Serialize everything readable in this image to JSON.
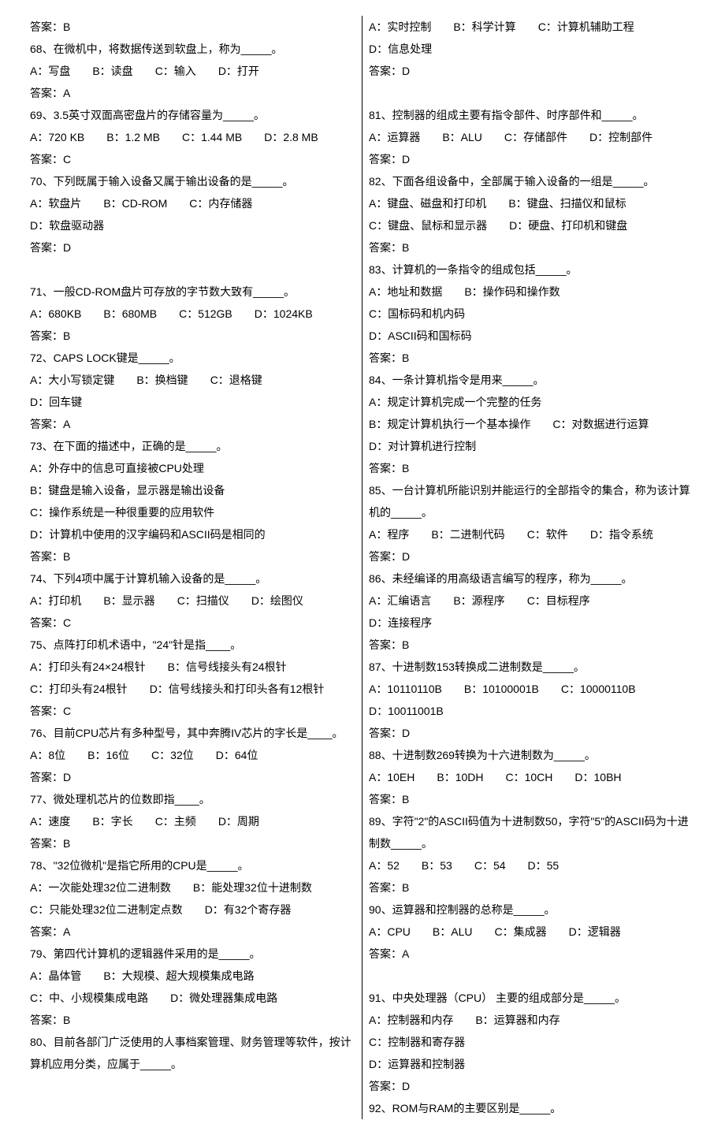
{
  "left": [
    {
      "text": "答案：B"
    },
    {
      "text": "68、在微机中，将数据传送到软盘上，称为_____。"
    },
    {
      "opts": [
        "A：写盘",
        "B：读盘",
        "C：输入",
        "D：打开"
      ]
    },
    {
      "text": "答案：A"
    },
    {
      "text": "69、3.5英寸双面高密盘片的存储容量为_____。"
    },
    {
      "opts": [
        "A：720 KB",
        "B：1.2 MB",
        "C：1.44 MB",
        "D：2.8 MB"
      ]
    },
    {
      "text": "答案：C"
    },
    {
      "text": "70、下列既属于输入设备又属于输出设备的是_____。"
    },
    {
      "opts": [
        "A：软盘片",
        "B：CD-ROM",
        "C：内存储器",
        "D：软盘驱动器"
      ]
    },
    {
      "text": "答案：D"
    },
    {
      "text": " "
    },
    {
      "text": "71、一般CD-ROM盘片可存放的字节数大致有_____。"
    },
    {
      "opts": [
        "A：680KB",
        "B：680MB",
        "C：512GB",
        "D：1024KB"
      ]
    },
    {
      "text": "答案：B"
    },
    {
      "text": "72、CAPS LOCK键是_____。"
    },
    {
      "opts": [
        "A：大小写锁定键",
        "B：换档键",
        "C：退格键",
        "D：回车键"
      ]
    },
    {
      "text": "答案：A"
    },
    {
      "text": "73、在下面的描述中，正确的是_____。"
    },
    {
      "opts": [
        "A：外存中的信息可直接被CPU处理",
        "B：键盘是输入设备，显示器是输出设备",
        "C：操作系统是一种很重要的应用软件",
        "D：计算机中使用的汉字编码和ASCII码是相同的"
      ]
    },
    {
      "text": "答案：B"
    },
    {
      "text": "74、下列4项中属于计算机输入设备的是_____。"
    },
    {
      "opts": [
        "A：打印机",
        "B：显示器",
        "C：扫描仪",
        "D：绘图仪"
      ]
    },
    {
      "text": "答案：C"
    },
    {
      "text": "75、点阵打印机术语中，\"24\"针是指____。"
    },
    {
      "opts": [
        "A：打印头有24×24根针",
        "B：信号线接头有24根针",
        "C：打印头有24根针",
        "D：信号线接头和打印头各有12根针"
      ]
    },
    {
      "text": "答案：C"
    },
    {
      "text": "76、目前CPU芯片有多种型号，其中奔腾IV芯片的字长是____。"
    },
    {
      "opts": [
        "A：8位",
        "B：16位",
        "C：32位",
        "D：64位"
      ]
    },
    {
      "text": "答案：D"
    },
    {
      "text": "77、微处理机芯片的位数即指____。"
    },
    {
      "opts": [
        "A：速度",
        "B：字长",
        "C：主频",
        "D：周期"
      ]
    },
    {
      "text": "答案：B"
    },
    {
      "text": "78、\"32位微机\"是指它所用的CPU是_____。"
    },
    {
      "opts": [
        "A：一次能处理32位二进制数",
        "B：能处理32位十进制数"
      ]
    },
    {
      "opts": [
        "C：只能处理32位二进制定点数",
        "D：有32个寄存器"
      ]
    },
    {
      "text": "答案：A"
    },
    {
      "text": "79、第四代计算机的逻辑器件采用的是_____。"
    },
    {
      "opts": [
        "A：晶体管",
        "B：大规模、超大规模集成电路",
        "C：中、小规模集成电路",
        "D：微处理器集成电路"
      ]
    },
    {
      "text": "答案：B"
    },
    {
      "text": "80、目前各部门广泛使用的人事档案管理、财务管理等软件，按计算机应用分类，应属于_____。"
    }
  ],
  "right": [
    {
      "opts": [
        "A：实时控制",
        "B：科学计算",
        "C：计算机辅助工程",
        "D：信息处理"
      ]
    },
    {
      "text": "答案：D"
    },
    {
      "text": " "
    },
    {
      "text": "81、控制器的组成主要有指令部件、时序部件和_____。"
    },
    {
      "opts": [
        "A：运算器",
        "B：ALU",
        "C：存储部件",
        "D：控制部件"
      ]
    },
    {
      "text": "答案：D"
    },
    {
      "text": "82、下面各组设备中，全部属于输入设备的一组是_____。"
    },
    {
      "opts": [
        "A：键盘、磁盘和打印机",
        "B：键盘、扫描仪和鼠标",
        "C：键盘、鼠标和显示器",
        "D：硬盘、打印机和键盘"
      ]
    },
    {
      "text": "答案：B"
    },
    {
      "text": "83、计算机的一条指令的组成包括_____。"
    },
    {
      "opts": [
        "A：地址和数据",
        "B：操作码和操作数",
        "C：国标码和机内码"
      ]
    },
    {
      "text": "D：ASCII码和国标码"
    },
    {
      "text": "答案：B"
    },
    {
      "text": "84、一条计算机指令是用来_____。"
    },
    {
      "opts": [
        "A：规定计算机完成一个完整的任务",
        "B：规定计算机执行一个基本操作",
        "C：对数据进行运算",
        "D：对计算机进行控制"
      ]
    },
    {
      "text": "答案：B"
    },
    {
      "text": "85、一台计算机所能识别并能运行的全部指令的集合，称为该计算机的_____。"
    },
    {
      "opts": [
        "A：程序",
        "B：二进制代码",
        "C：软件",
        "D：指令系统"
      ]
    },
    {
      "text": "答案：D"
    },
    {
      "text": "86、未经编译的用高级语言编写的程序，称为_____。"
    },
    {
      "opts": [
        "A：汇编语言",
        "B：源程序",
        "C：目标程序",
        "D：连接程序"
      ]
    },
    {
      "text": "答案：B"
    },
    {
      "text": "87、十进制数153转换成二进制数是_____。"
    },
    {
      "opts": [
        "A：10110110B",
        "B：10100001B",
        "C：10000110B"
      ]
    },
    {
      "text": "D：10011001B"
    },
    {
      "text": "答案：D"
    },
    {
      "text": "88、十进制数269转换为十六进制数为_____。"
    },
    {
      "opts": [
        "A：10EH",
        "B：10DH",
        "C：10CH",
        "D：10BH"
      ]
    },
    {
      "text": "答案：B"
    },
    {
      "text": "89、字符\"2\"的ASCII码值为十进制数50，字符\"5\"的ASCII码为十进制数_____。"
    },
    {
      "opts": [
        "A：52",
        "B：53",
        "C：54",
        "D：55"
      ]
    },
    {
      "text": "答案：B"
    },
    {
      "text": "90、运算器和控制器的总称是_____。"
    },
    {
      "opts": [
        "A：CPU",
        "B：ALU",
        "C：集成器",
        "D：逻辑器"
      ]
    },
    {
      "text": "答案：A"
    },
    {
      "text": " "
    },
    {
      "text": "91、中央处理器（CPU） 主要的组成部分是_____。"
    },
    {
      "opts": [
        "A：控制器和内存",
        "B：运算器和内存",
        "C：控制器和寄存器"
      ]
    },
    {
      "text": "D：运算器和控制器"
    },
    {
      "text": "答案：D"
    },
    {
      "text": "92、ROM与RAM的主要区别是_____。"
    }
  ]
}
